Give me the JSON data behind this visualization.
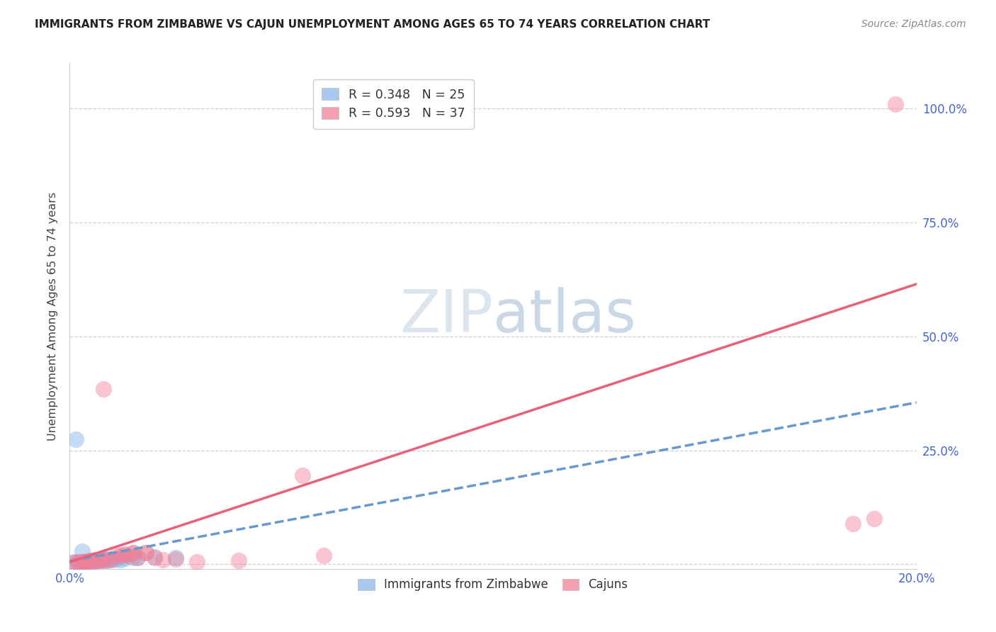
{
  "title": "IMMIGRANTS FROM ZIMBABWE VS CAJUN UNEMPLOYMENT AMONG AGES 65 TO 74 YEARS CORRELATION CHART",
  "source": "Source: ZipAtlas.com",
  "ylabel": "Unemployment Among Ages 65 to 74 years",
  "xlim": [
    0.0,
    0.2
  ],
  "ylim": [
    -0.01,
    1.1
  ],
  "x_ticks": [
    0.0,
    0.05,
    0.1,
    0.15,
    0.2
  ],
  "x_tick_labels": [
    "0.0%",
    "",
    "",
    "",
    "20.0%"
  ],
  "y_ticks": [
    0.0,
    0.25,
    0.5,
    0.75,
    1.0
  ],
  "y_tick_labels": [
    "",
    "25.0%",
    "50.0%",
    "75.0%",
    "100.0%"
  ],
  "zimbabwe_color": "#7fb3e8",
  "cajun_color": "#f08098",
  "legend_patch_zim": "#a8c8f0",
  "legend_patch_caj": "#f4a0b0",
  "zim_line_color": "#6699cc",
  "caj_line_color": "#e8607a",
  "tick_color": "#4466cc",
  "grid_color": "#d0d0d0",
  "background_color": "#ffffff",
  "watermark_color": "#c8d8e8",
  "title_color": "#222222",
  "source_color": "#888888",
  "ylabel_color": "#444444",
  "zimbabwe_x": [
    0.001,
    0.002,
    0.003,
    0.003,
    0.004,
    0.005,
    0.005,
    0.006,
    0.006,
    0.007,
    0.007,
    0.008,
    0.008,
    0.009,
    0.009,
    0.01,
    0.011,
    0.012,
    0.013,
    0.015,
    0.016,
    0.02,
    0.003,
    0.025,
    0.0015
  ],
  "zimbabwe_y": [
    0.005,
    0.004,
    0.005,
    0.006,
    0.006,
    0.007,
    0.008,
    0.007,
    0.008,
    0.009,
    0.01,
    0.008,
    0.011,
    0.01,
    0.009,
    0.011,
    0.012,
    0.01,
    0.013,
    0.014,
    0.015,
    0.016,
    0.028,
    0.015,
    0.275
  ],
  "cajun_x": [
    0.001,
    0.002,
    0.002,
    0.003,
    0.003,
    0.004,
    0.004,
    0.005,
    0.005,
    0.006,
    0.006,
    0.007,
    0.008,
    0.008,
    0.009,
    0.01,
    0.011,
    0.012,
    0.013,
    0.013,
    0.014,
    0.015,
    0.015,
    0.016,
    0.018,
    0.018,
    0.02,
    0.022,
    0.025,
    0.03,
    0.04,
    0.055,
    0.06,
    0.008,
    0.195,
    0.19,
    0.185
  ],
  "cajun_y": [
    0.003,
    0.004,
    0.005,
    0.003,
    0.006,
    0.005,
    0.007,
    0.006,
    0.008,
    0.007,
    0.01,
    0.009,
    0.012,
    0.008,
    0.011,
    0.01,
    0.02,
    0.019,
    0.021,
    0.022,
    0.02,
    0.025,
    0.026,
    0.015,
    0.025,
    0.026,
    0.015,
    0.01,
    0.012,
    0.005,
    0.008,
    0.195,
    0.02,
    0.385,
    1.01,
    0.1,
    0.09
  ],
  "zim_line_x": [
    0.0,
    0.2
  ],
  "zim_line_y": [
    0.007,
    0.355
  ],
  "caj_line_x": [
    0.0,
    0.2
  ],
  "caj_line_y": [
    0.005,
    0.615
  ]
}
